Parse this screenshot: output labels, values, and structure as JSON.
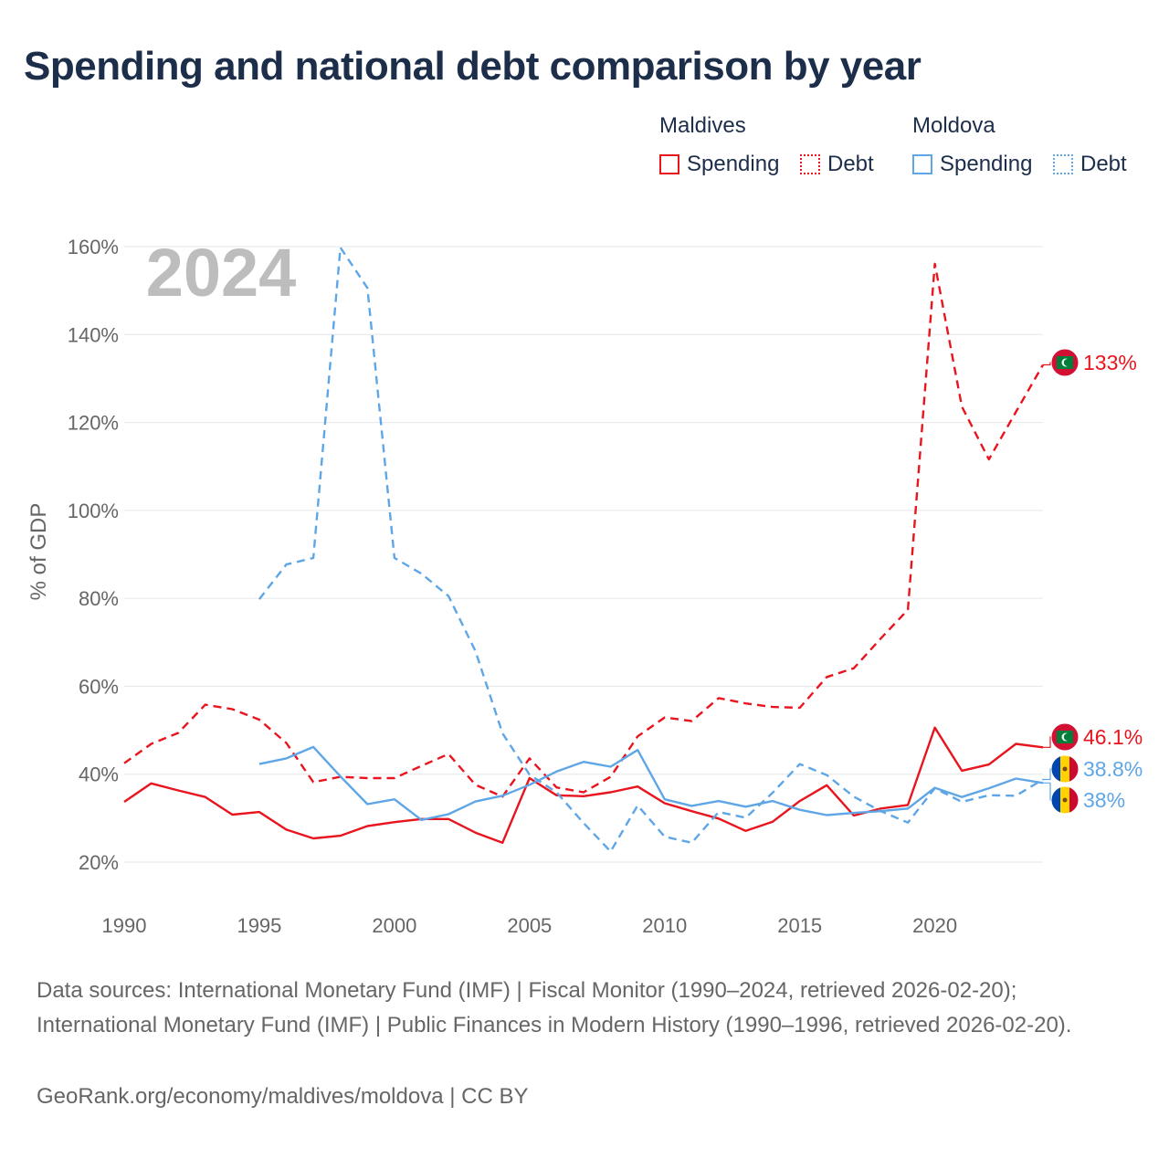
{
  "title": "Spending and national debt comparison by year",
  "legend": {
    "groups": [
      {
        "country": "Maldives",
        "items": [
          "Spending",
          "Debt"
        ]
      },
      {
        "country": "Moldova",
        "items": [
          "Spending",
          "Debt"
        ]
      }
    ]
  },
  "colors": {
    "maldives": "#e8141e",
    "moldova": "#5ea6e6"
  },
  "year_label": "2024",
  "end_labels": {
    "maldives_debt": "133%",
    "maldives_spending": "46.1%",
    "moldova_debt": "38.8%",
    "moldova_spending": "38%"
  },
  "footer": {
    "sources": "Data sources: International Monetary Fund (IMF) | Fiscal Monitor (1990–2024, retrieved 2026-02-20); International Monetary Fund (IMF) | Public Finances in Modern History (1990–1996, retrieved 2026-02-20).",
    "attribution": "GeoRank.org/economy/maldives/moldova | CC BY"
  },
  "chart_data": {
    "type": "line",
    "ylabel": "% of GDP",
    "xlabel": "",
    "xlim": [
      1990,
      2024
    ],
    "ylim": [
      10,
      165
    ],
    "x_ticks": [
      1990,
      1995,
      2000,
      2005,
      2010,
      2015,
      2020
    ],
    "y_ticks": [
      20,
      40,
      60,
      80,
      100,
      120,
      140,
      160
    ],
    "y_tick_labels": [
      "20%",
      "40%",
      "60%",
      "80%",
      "100%",
      "120%",
      "140%",
      "160%"
    ],
    "series": [
      {
        "name": "Maldives Spending",
        "country": "Maldives",
        "metric": "Spending",
        "style": "solid",
        "x": [
          1990,
          1991,
          1992,
          1993,
          1994,
          1995,
          1996,
          1997,
          1998,
          1999,
          2000,
          2001,
          2002,
          2003,
          2004,
          2005,
          2006,
          2007,
          2008,
          2009,
          2010,
          2011,
          2012,
          2013,
          2014,
          2015,
          2016,
          2017,
          2018,
          2019,
          2020,
          2021,
          2022,
          2023,
          2024
        ],
        "values": [
          33.7,
          37.9,
          36.3,
          34.8,
          30.8,
          31.4,
          27.4,
          25.4,
          26,
          28.2,
          29.1,
          29.8,
          29.8,
          26.7,
          24.4,
          39.1,
          35.2,
          35,
          35.9,
          37.2,
          33.4,
          31.6,
          29.9,
          27.1,
          29.2,
          33.9,
          37.5,
          30.6,
          32.2,
          33,
          50.6,
          40.8,
          42.2,
          46.9,
          46.1
        ]
      },
      {
        "name": "Maldives Debt",
        "country": "Maldives",
        "metric": "Debt",
        "style": "dashed",
        "x": [
          1990,
          1991,
          1992,
          1993,
          1994,
          1995,
          1996,
          1997,
          1998,
          1999,
          2000,
          2001,
          2002,
          2003,
          2004,
          2005,
          2006,
          2007,
          2008,
          2009,
          2010,
          2011,
          2012,
          2013,
          2014,
          2015,
          2016,
          2017,
          2018,
          2019,
          2020,
          2021,
          2022,
          2023,
          2024
        ],
        "values": [
          42.5,
          46.9,
          49.4,
          55.8,
          54.8,
          52.4,
          47.1,
          38.2,
          39.4,
          39.1,
          39.1,
          41.9,
          44.6,
          37.6,
          34.9,
          43.6,
          37,
          35.9,
          39.4,
          48.6,
          52.9,
          52.1,
          57.3,
          56.1,
          55.3,
          55.1,
          62.1,
          64.1,
          70.9,
          77.4,
          156.1,
          123.6,
          111.6,
          122.4,
          133.1
        ]
      },
      {
        "name": "Moldova Spending",
        "country": "Moldova",
        "metric": "Spending",
        "style": "solid",
        "x": [
          1995,
          1996,
          1997,
          1998,
          1999,
          2000,
          2001,
          2002,
          2003,
          2004,
          2005,
          2006,
          2007,
          2008,
          2009,
          2010,
          2011,
          2012,
          2013,
          2014,
          2015,
          2016,
          2017,
          2018,
          2019,
          2020,
          2021,
          2022,
          2023,
          2024
        ],
        "values": [
          42.3,
          43.6,
          46.2,
          39.5,
          33.2,
          34.3,
          29.6,
          30.9,
          33.8,
          35.1,
          37.6,
          40.6,
          42.8,
          41.7,
          45.5,
          34.3,
          32.8,
          33.9,
          32.6,
          33.9,
          31.9,
          30.7,
          31.2,
          31.6,
          32.2,
          36.9,
          34.8,
          36.8,
          39,
          38
        ]
      },
      {
        "name": "Moldova Debt",
        "country": "Moldova",
        "metric": "Debt",
        "style": "dashed",
        "x": [
          1995,
          1996,
          1997,
          1998,
          1999,
          2000,
          2001,
          2002,
          2003,
          2004,
          2005,
          2006,
          2007,
          2008,
          2009,
          2010,
          2011,
          2012,
          2013,
          2014,
          2015,
          2016,
          2017,
          2018,
          2019,
          2020,
          2021,
          2022,
          2023,
          2024
        ],
        "values": [
          79.8,
          87.7,
          89.2,
          159.8,
          150.6,
          89.2,
          85.6,
          80.5,
          68,
          49.3,
          39.9,
          35.9,
          28.9,
          22.4,
          32.9,
          25.8,
          24.4,
          31.4,
          30.1,
          35.8,
          42.3,
          39.8,
          34.9,
          31.6,
          29,
          36.8,
          33.7,
          35.2,
          35.1,
          38.8
        ]
      }
    ]
  }
}
